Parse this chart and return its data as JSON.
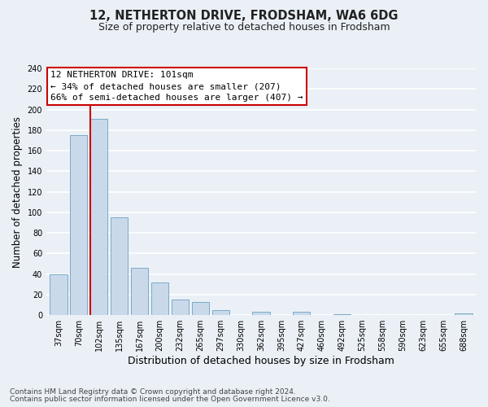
{
  "title": "12, NETHERTON DRIVE, FRODSHAM, WA6 6DG",
  "subtitle": "Size of property relative to detached houses in Frodsham",
  "xlabel": "Distribution of detached houses by size in Frodsham",
  "ylabel": "Number of detached properties",
  "bar_labels": [
    "37sqm",
    "70sqm",
    "102sqm",
    "135sqm",
    "167sqm",
    "200sqm",
    "232sqm",
    "265sqm",
    "297sqm",
    "330sqm",
    "362sqm",
    "395sqm",
    "427sqm",
    "460sqm",
    "492sqm",
    "525sqm",
    "558sqm",
    "590sqm",
    "623sqm",
    "655sqm",
    "688sqm"
  ],
  "bar_values": [
    40,
    175,
    191,
    95,
    46,
    32,
    15,
    13,
    5,
    0,
    3,
    0,
    3,
    0,
    1,
    0,
    0,
    0,
    0,
    0,
    2
  ],
  "bar_color": "#c9d9ea",
  "bar_edge_color": "#7aaac8",
  "highlight_index": 2,
  "highlight_line_color": "#cc0000",
  "ylim": [
    0,
    240
  ],
  "yticks": [
    0,
    20,
    40,
    60,
    80,
    100,
    120,
    140,
    160,
    180,
    200,
    220,
    240
  ],
  "annotation_title": "12 NETHERTON DRIVE: 101sqm",
  "annotation_line1": "← 34% of detached houses are smaller (207)",
  "annotation_line2": "66% of semi-detached houses are larger (407) →",
  "annotation_box_color": "#ffffff",
  "annotation_box_edge": "#cc0000",
  "footer_line1": "Contains HM Land Registry data © Crown copyright and database right 2024.",
  "footer_line2": "Contains public sector information licensed under the Open Government Licence v3.0.",
  "background_color": "#eaf0f6",
  "grid_color": "#ffffff",
  "title_fontsize": 10.5,
  "subtitle_fontsize": 9,
  "xlabel_fontsize": 9,
  "ylabel_fontsize": 8.5,
  "tick_fontsize": 7,
  "footer_fontsize": 6.5,
  "annotation_fontsize": 8
}
